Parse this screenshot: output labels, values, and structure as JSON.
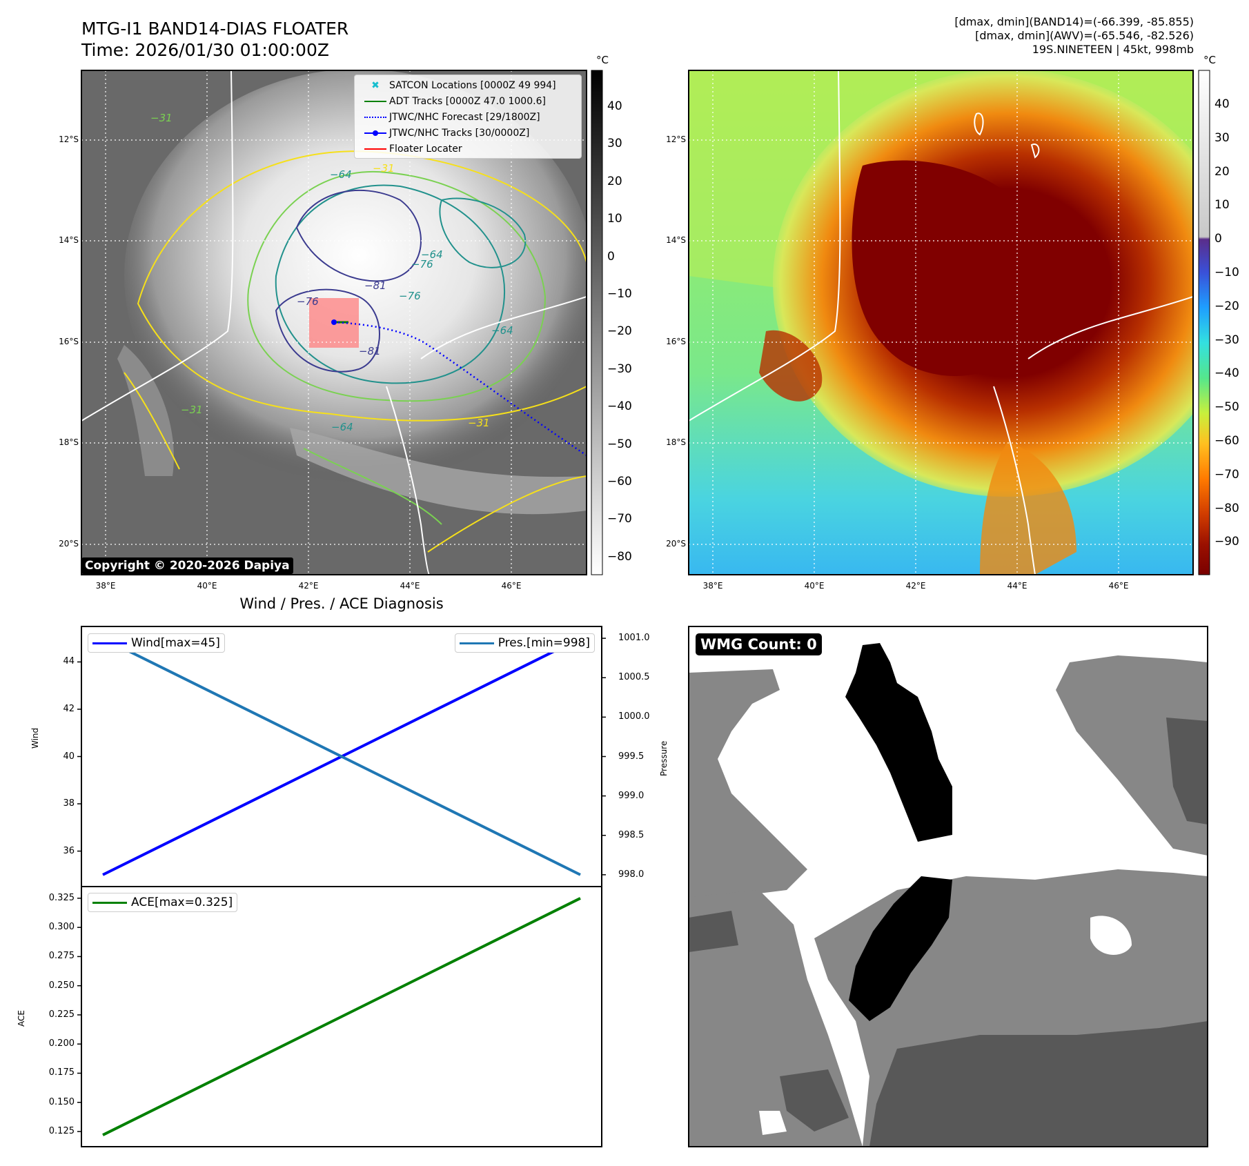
{
  "header": {
    "title_line1": "MTG-I1 BAND14-DIAS FLOATER",
    "title_line2": "Time: 2026/01/30 01:00:00Z",
    "stats_line1": "[dmax, dmin](BAND14)=(-66.399, -85.855)",
    "stats_line2": "[dmax, dmin](AWV)=(-65.546, -82.526)",
    "stats_line3": "19S.NINETEEN | 45kt, 998mb"
  },
  "map_common": {
    "lon_ticks": [
      "38°E",
      "40°E",
      "42°E",
      "44°E",
      "46°E"
    ],
    "lat_ticks": [
      "12°S",
      "14°S",
      "16°S",
      "18°S",
      "20°S"
    ],
    "colorbar_unit": "°C"
  },
  "map_ir": {
    "colorbar_ticks": [
      "40",
      "30",
      "20",
      "10",
      "0",
      "−10",
      "−20",
      "−30",
      "−40",
      "−50",
      "−60",
      "−70",
      "−80"
    ],
    "contour_labels": [
      "−64",
      "−31",
      "−31",
      "−76",
      "−81",
      "−64",
      "−76",
      "−81",
      "−31",
      "−64",
      "−76",
      "−64",
      "−31"
    ],
    "legend": [
      {
        "label": "SATCON Locations [0000Z 49 994]",
        "color": "#17becf",
        "marker": "x"
      },
      {
        "label": "ADT Tracks [0000Z 47.0 1000.6]",
        "color": "#008000",
        "marker": "line"
      },
      {
        "label": "JTWC/NHC Forecast [29/1800Z]",
        "color": "#0000ff",
        "marker": "dotted"
      },
      {
        "label": "JTWC/NHC Tracks [30/0000Z]",
        "color": "#0000ff",
        "marker": "line-dot"
      },
      {
        "label": "Floater Locater",
        "color": "#ff0000",
        "marker": "line"
      }
    ],
    "copyright": "Copyright © 2020-2026 Dapiya"
  },
  "map_color": {
    "colorbar_ticks": [
      "40",
      "30",
      "20",
      "10",
      "0",
      "−10",
      "−20",
      "−30",
      "−40",
      "−50",
      "−60",
      "−70",
      "−80",
      "−90"
    ]
  },
  "diagnosis": {
    "title": "Wind / Pres. / ACE Diagnosis",
    "wind_legend": "Wind[max=45]",
    "pres_legend": "Pres.[min=998]",
    "ace_legend": "ACE[max=0.325]",
    "wind_axis_label": "Wind",
    "pres_axis_label": "Pressure",
    "ace_axis_label": "ACE",
    "wind_ticks": [
      "44",
      "42",
      "40",
      "38",
      "36"
    ],
    "pres_ticks": [
      "1001.0",
      "1000.5",
      "1000.0",
      "999.5",
      "999.0",
      "998.5",
      "998.0"
    ],
    "ace_ticks": [
      "0.325",
      "0.300",
      "0.275",
      "0.250",
      "0.225",
      "0.200",
      "0.175",
      "0.150",
      "0.125"
    ]
  },
  "wmg": {
    "label": "WMG Count: 0"
  },
  "chart_data": [
    {
      "type": "line",
      "x": [
        0,
        1
      ],
      "series": [
        {
          "name": "Wind[max=45]",
          "values": [
            35,
            45
          ],
          "color": "#0000ff",
          "axis": "left"
        },
        {
          "name": "Pres.[min=998]",
          "values": [
            1001.0,
            998.0
          ],
          "color": "#1f77b4",
          "axis": "right"
        }
      ],
      "ylabel": "Wind",
      "y2label": "Pressure",
      "ylim": [
        34.5,
        45.5
      ],
      "y2lim": [
        997.85,
        1001.15
      ]
    },
    {
      "type": "line",
      "x": [
        0,
        1
      ],
      "series": [
        {
          "name": "ACE[max=0.325]",
          "values": [
            0.122,
            0.325
          ],
          "color": "#008000"
        }
      ],
      "ylabel": "ACE",
      "ylim": [
        0.112,
        0.335
      ]
    }
  ],
  "colors": {
    "coast": "#ffffff",
    "grid": "#ffffff",
    "floater_box": "#ff7f7f"
  }
}
